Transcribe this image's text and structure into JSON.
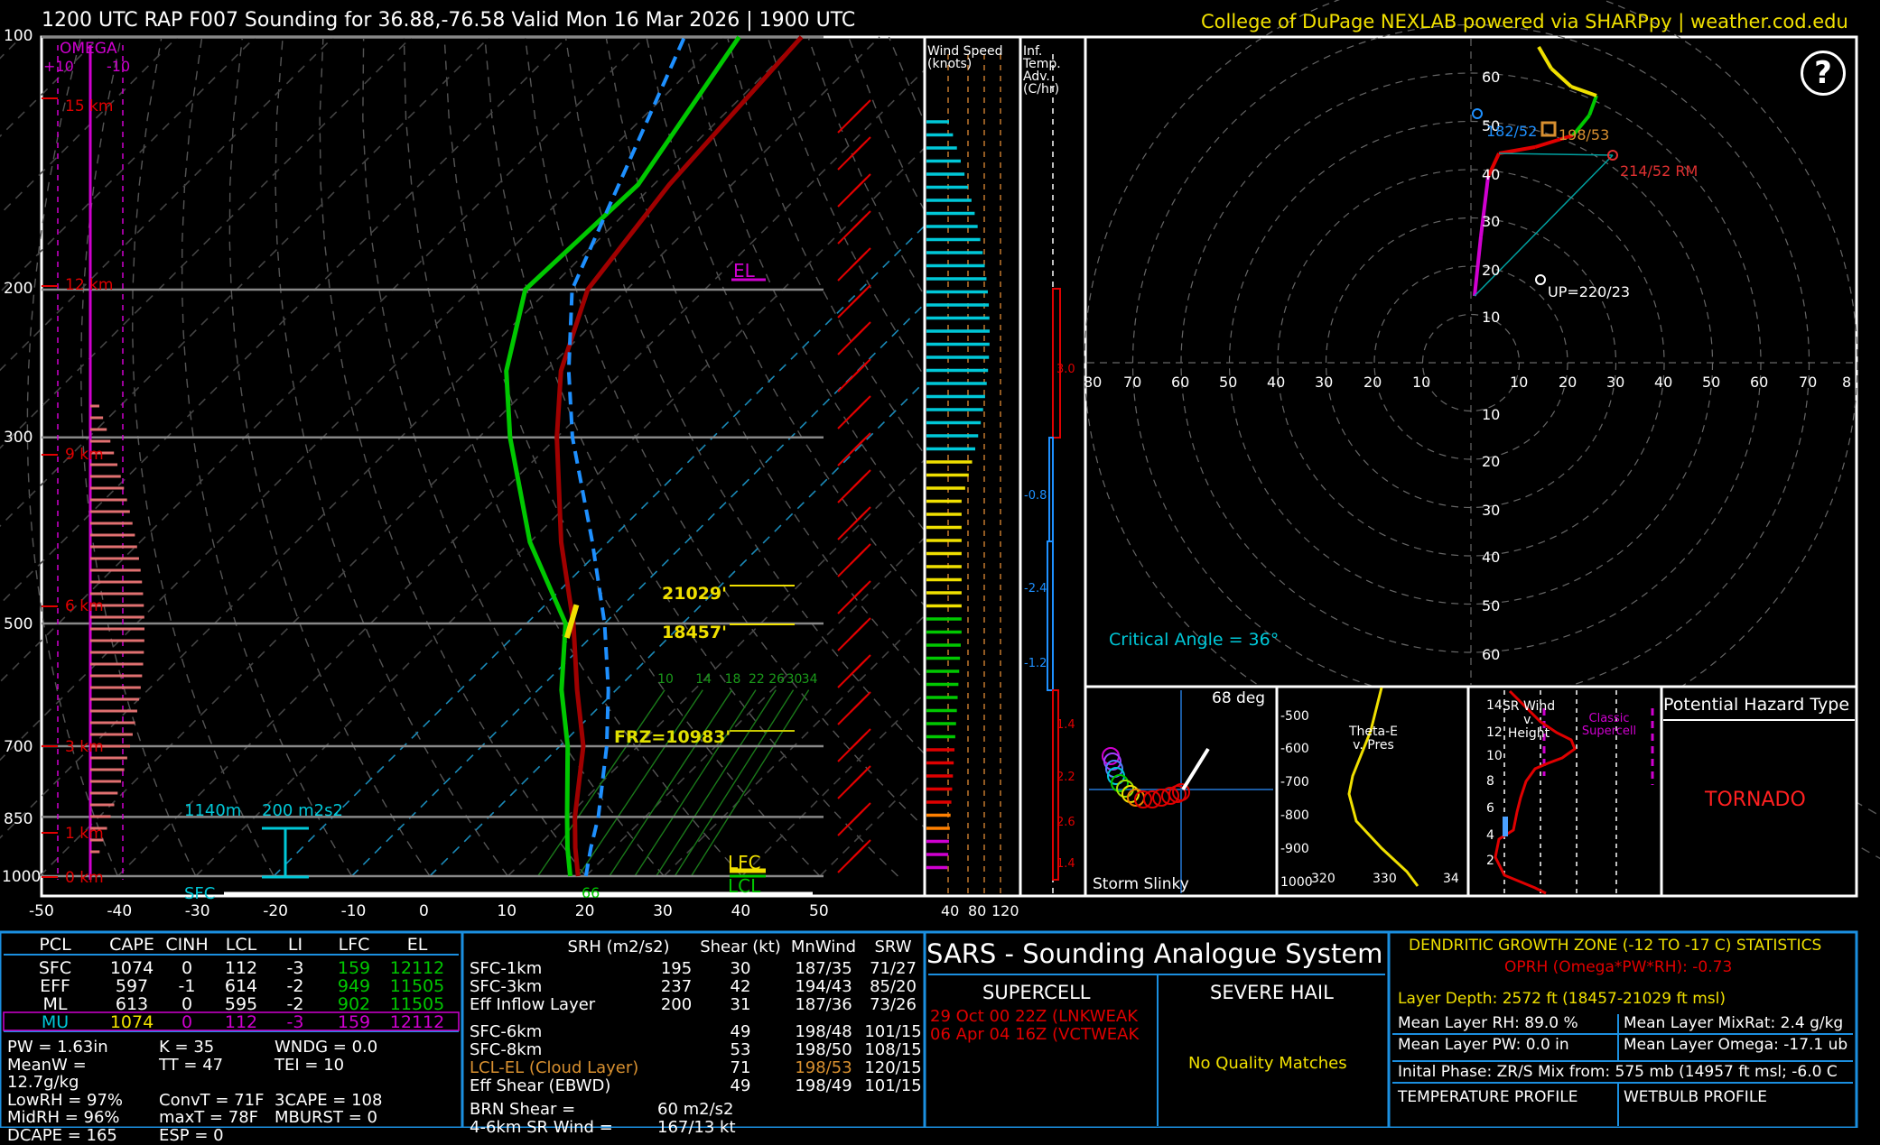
{
  "header": {
    "title": "1200 UTC RAP F007 Sounding for 36.88,-76.58 Valid  Mon 16 Mar 2026 | 1900 UTC",
    "credit": "College of DuPage NEXLAB powered via SHARPpy | weather.cod.edu"
  },
  "skewt": {
    "pressure_ticks": [
      "100",
      "200",
      "300",
      "500",
      "700",
      "850",
      "1000"
    ],
    "temp_ticks": [
      "-50",
      "-40",
      "-30",
      "-20",
      "-10",
      "0",
      "10",
      "20",
      "30",
      "40",
      "50"
    ],
    "height_labels": [
      "15 km",
      "12 km",
      "9 km",
      "6 km",
      "3 km",
      "1 km",
      "0 km"
    ],
    "omega_title": "OMEGA",
    "omega_plus": "+10",
    "omega_minus": "-10",
    "el_label": "EL",
    "lfc_label": "LFC",
    "lcl_label": "LCL",
    "dgz_top": "21029'",
    "dgz_bottom": "18457'",
    "frz_label": "FRZ=10983'",
    "effective_inflow_height": "1140m",
    "effective_srh": "200 m2s2",
    "sfc_label": "SFC",
    "sfc_dewpoint_marker": "66",
    "mixing_ratio_labels": [
      "10",
      "14",
      "18",
      "22",
      "26",
      "30",
      "34"
    ]
  },
  "wind_panel": {
    "title": "Wind Speed (knots)",
    "ticks": [
      "40",
      "80",
      "120"
    ]
  },
  "temp_adv_panel": {
    "title": "Inf. Temp. Adv. (C/hr)",
    "values": [
      "3.0",
      "-0.8",
      "-2.4",
      "-1.2",
      "1.4",
      "2.2",
      "2.6",
      "1.4"
    ]
  },
  "hodograph": {
    "ring_labels_x": [
      "80",
      "70",
      "60",
      "50",
      "40",
      "30",
      "20",
      "10",
      "10",
      "20",
      "30",
      "40",
      "50",
      "60",
      "70",
      "8"
    ],
    "ring_labels_y": [
      "60",
      "50",
      "40",
      "30",
      "20",
      "10",
      "10",
      "20",
      "30",
      "40",
      "50",
      "60"
    ],
    "left_mover": "182/52",
    "mean_wind": "198/53",
    "right_mover": "214/52 RM",
    "upshear": "UP=220/23",
    "critical_angle": "Critical Angle = 36°"
  },
  "storm_slinky": {
    "title": "Storm Slinky",
    "angle": "68 deg"
  },
  "theta_panel": {
    "title": "Theta-E v. Pres",
    "p_ticks": [
      "-500",
      "-600",
      "-700",
      "-800",
      "-900",
      "1000"
    ],
    "x_ticks": [
      "320",
      "330",
      "34"
    ]
  },
  "srwind_panel": {
    "title": "SR Wind v. Height",
    "y_ticks": [
      "14",
      "12",
      "10",
      "8",
      "6",
      "4",
      "2"
    ],
    "supercell_label": "Classic Supercell"
  },
  "hazard": {
    "title": "Potential Hazard Type",
    "value": "TORNADO"
  },
  "parcels": {
    "headers": [
      "PCL",
      "CAPE",
      "CINH",
      "LCL",
      "LI",
      "LFC",
      "EL"
    ],
    "rows": [
      {
        "name": "SFC",
        "cape": "1074",
        "cinh": "0",
        "lcl": "112",
        "li": "-3",
        "lfc": "159",
        "el": "12112"
      },
      {
        "name": "EFF",
        "cape": "597",
        "cinh": "-1",
        "lcl": "614",
        "li": "-2",
        "lfc": "949",
        "el": "11505"
      },
      {
        "name": "ML",
        "cape": "613",
        "cinh": "0",
        "lcl": "595",
        "li": "-2",
        "lfc": "902",
        "el": "11505"
      },
      {
        "name": "MU",
        "cape": "1074",
        "cinh": "0",
        "lcl": "112",
        "li": "-3",
        "lfc": "159",
        "el": "12112"
      }
    ]
  },
  "indices": [
    [
      "PW = 1.63in",
      "K = 35",
      "WNDG = 0.0"
    ],
    [
      "MeanW = 12.7g/kg",
      "TT = 47",
      "TEI = 10"
    ],
    [
      "LowRH = 97%",
      "ConvT = 71F",
      "3CAPE = 108"
    ],
    [
      "MidRH = 96%",
      "maxT = 78F",
      "MBURST = 0"
    ],
    [
      "DCAPE = 165",
      "ESP = 0",
      ""
    ]
  ],
  "kinematics": {
    "headers": [
      "SRH (m2/s2)",
      "Shear (kt)",
      "MnWind",
      "SRW"
    ],
    "rows": [
      {
        "layer": "SFC-1km",
        "srh": "195",
        "shear": "30",
        "mnwind": "187/35",
        "srw": "71/27"
      },
      {
        "layer": "SFC-3km",
        "srh": "237",
        "shear": "42",
        "mnwind": "194/43",
        "srw": "85/20"
      },
      {
        "layer": "Eff Inflow Layer",
        "srh": "200",
        "shear": "31",
        "mnwind": "187/36",
        "srw": "73/26"
      },
      {
        "layer": "SFC-6km",
        "srh": "",
        "shear": "49",
        "mnwind": "198/48",
        "srw": "101/15"
      },
      {
        "layer": "SFC-8km",
        "srh": "",
        "shear": "53",
        "mnwind": "198/50",
        "srw": "108/15"
      },
      {
        "layer": "LCL-EL (Cloud Layer)",
        "srh": "",
        "shear": "71",
        "mnwind": "198/53",
        "srw": "120/15"
      },
      {
        "layer": "Eff Shear (EBWD)",
        "srh": "",
        "shear": "49",
        "mnwind": "198/49",
        "srw": "101/15"
      }
    ],
    "brn_label": "BRN Shear =",
    "brn_value": "60 m2/s2",
    "sr_wind_label": "4-6km SR Wind =",
    "sr_wind_value": "167/13 kt"
  },
  "sars": {
    "title": "SARS - Sounding Analogue System",
    "supercell_title": "SUPERCELL",
    "matches": [
      "29 Oct 00 22Z (LNKWEAK",
      "06 Apr 04 16Z (VCTWEAK"
    ],
    "hail_title": "SEVERE HAIL",
    "hail_result": "No Quality Matches"
  },
  "dgz": {
    "title": "DENDRITIC GROWTH ZONE (-12 TO -17 C) STATISTICS",
    "oprh": "OPRH (Omega*PW*RH): -0.73",
    "depth": "Layer Depth: 2572 ft (18457-21029 ft msl)",
    "rh": "Mean Layer RH: 89.0 %",
    "mixrat": "Mean Layer MixRat: 2.4 g/kg",
    "pw": "Mean Layer PW: 0.0 in",
    "omega": "Mean Layer Omega: -17.1 ub",
    "phase": "Inital Phase: ZR/S Mix from: 575 mb (14957 ft msl; -6.0 C",
    "temp_profile": "TEMPERATURE PROFILE",
    "wetbulb_profile": "WETBULB PROFILE"
  },
  "colors": {
    "temperature": "#a00000",
    "dewpoint": "#00c800",
    "virtual": "#1e90ff",
    "cyan": "#00c8d8",
    "yellow": "#f0e000",
    "magenta": "#d000d0",
    "red": "#e00000",
    "hazard": "#ff2020"
  },
  "chart_data": {
    "type": "line",
    "title": "",
    "xlabel": "",
    "ylabel": "",
    "y_scale": "log-pressure",
    "ylim": [
      1000,
      100
    ],
    "xlim": [
      -50,
      50
    ],
    "skew": "45deg",
    "series": [
      {
        "name": "Temperature",
        "unit": "C",
        "points": [
          [
            1000,
            19
          ],
          [
            925,
            15
          ],
          [
            850,
            11
          ],
          [
            700,
            3
          ],
          [
            600,
            -5
          ],
          [
            500,
            -14
          ],
          [
            400,
            -26
          ],
          [
            300,
            -40
          ],
          [
            250,
            -48
          ],
          [
            200,
            -55
          ],
          [
            150,
            -58
          ],
          [
            100,
            -60
          ]
        ]
      },
      {
        "name": "Dewpoint",
        "unit": "C",
        "points": [
          [
            1000,
            18
          ],
          [
            925,
            14
          ],
          [
            850,
            10
          ],
          [
            700,
            1
          ],
          [
            600,
            -7
          ],
          [
            500,
            -15
          ],
          [
            400,
            -30
          ],
          [
            300,
            -46
          ],
          [
            250,
            -55
          ],
          [
            200,
            -63
          ],
          [
            150,
            -62
          ],
          [
            100,
            -68
          ]
        ]
      },
      {
        "name": "Parcel",
        "unit": "C",
        "points": [
          [
            1000,
            20
          ],
          [
            925,
            17
          ],
          [
            850,
            14
          ],
          [
            700,
            6
          ],
          [
            600,
            -1
          ],
          [
            500,
            -10
          ],
          [
            400,
            -22
          ],
          [
            300,
            -38
          ],
          [
            250,
            -47
          ],
          [
            200,
            -57
          ],
          [
            100,
            -75
          ]
        ]
      }
    ],
    "hodograph_points": [
      [
        1,
        14
      ],
      [
        2,
        26
      ],
      [
        4,
        40
      ],
      [
        6,
        44
      ],
      [
        10,
        46
      ],
      [
        14,
        48
      ],
      [
        20,
        50
      ],
      [
        26,
        60
      ],
      [
        14,
        68
      ]
    ]
  }
}
